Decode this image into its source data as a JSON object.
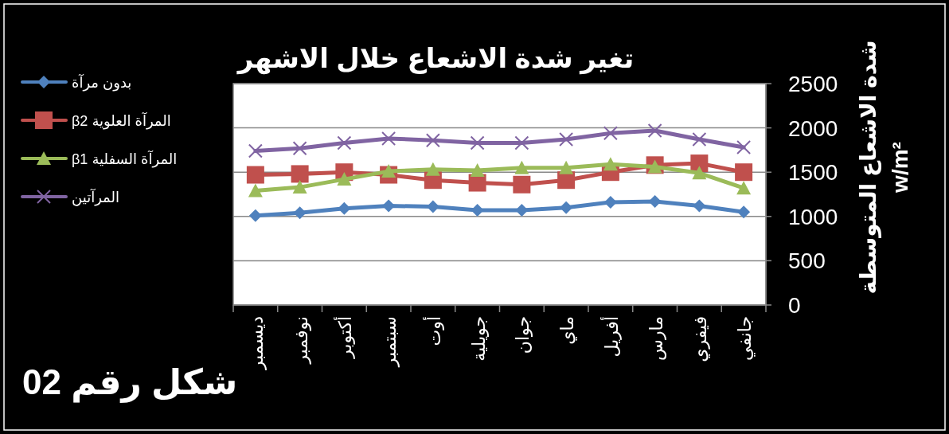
{
  "chart_data": {
    "type": "line",
    "title": "تغير شدة الاشعاع خلال الاشهر",
    "ylabel": "شدة الاشعاع المتوسطة w/m²",
    "annotations": [
      "شكل رقم 02"
    ],
    "categories": [
      "ديسمبر",
      "نوفمبر",
      "أكتوبر",
      "سبتمبر",
      "أوت",
      "جويلية",
      "جوان",
      "ماي",
      "أفريل",
      "مارس",
      "فيفري",
      "جانفي"
    ],
    "series": [
      {
        "name": "بدون مرآة",
        "color": "#4f81bd",
        "marker": "diamond",
        "values": [
          1010,
          1040,
          1090,
          1120,
          1110,
          1070,
          1070,
          1100,
          1160,
          1170,
          1120,
          1050
        ]
      },
      {
        "name": "المرآة العلوية β2",
        "color": "#c0504d",
        "marker": "square",
        "values": [
          1470,
          1480,
          1500,
          1470,
          1410,
          1380,
          1360,
          1410,
          1500,
          1580,
          1600,
          1500
        ]
      },
      {
        "name": "المرآة السفلية β1",
        "color": "#9bbb59",
        "marker": "triangle",
        "values": [
          1290,
          1330,
          1420,
          1510,
          1530,
          1520,
          1550,
          1550,
          1590,
          1560,
          1490,
          1320
        ]
      },
      {
        "name": "المرآتين",
        "color": "#8064a2",
        "marker": "cross",
        "values": [
          1740,
          1770,
          1830,
          1880,
          1860,
          1830,
          1830,
          1870,
          1940,
          1970,
          1870,
          1780
        ]
      }
    ],
    "ylim": [
      0,
      2500
    ],
    "yticks": [
      0,
      500,
      1000,
      1500,
      2000,
      2500
    ],
    "grid": "y",
    "legend": "left",
    "line_style": "solid"
  }
}
